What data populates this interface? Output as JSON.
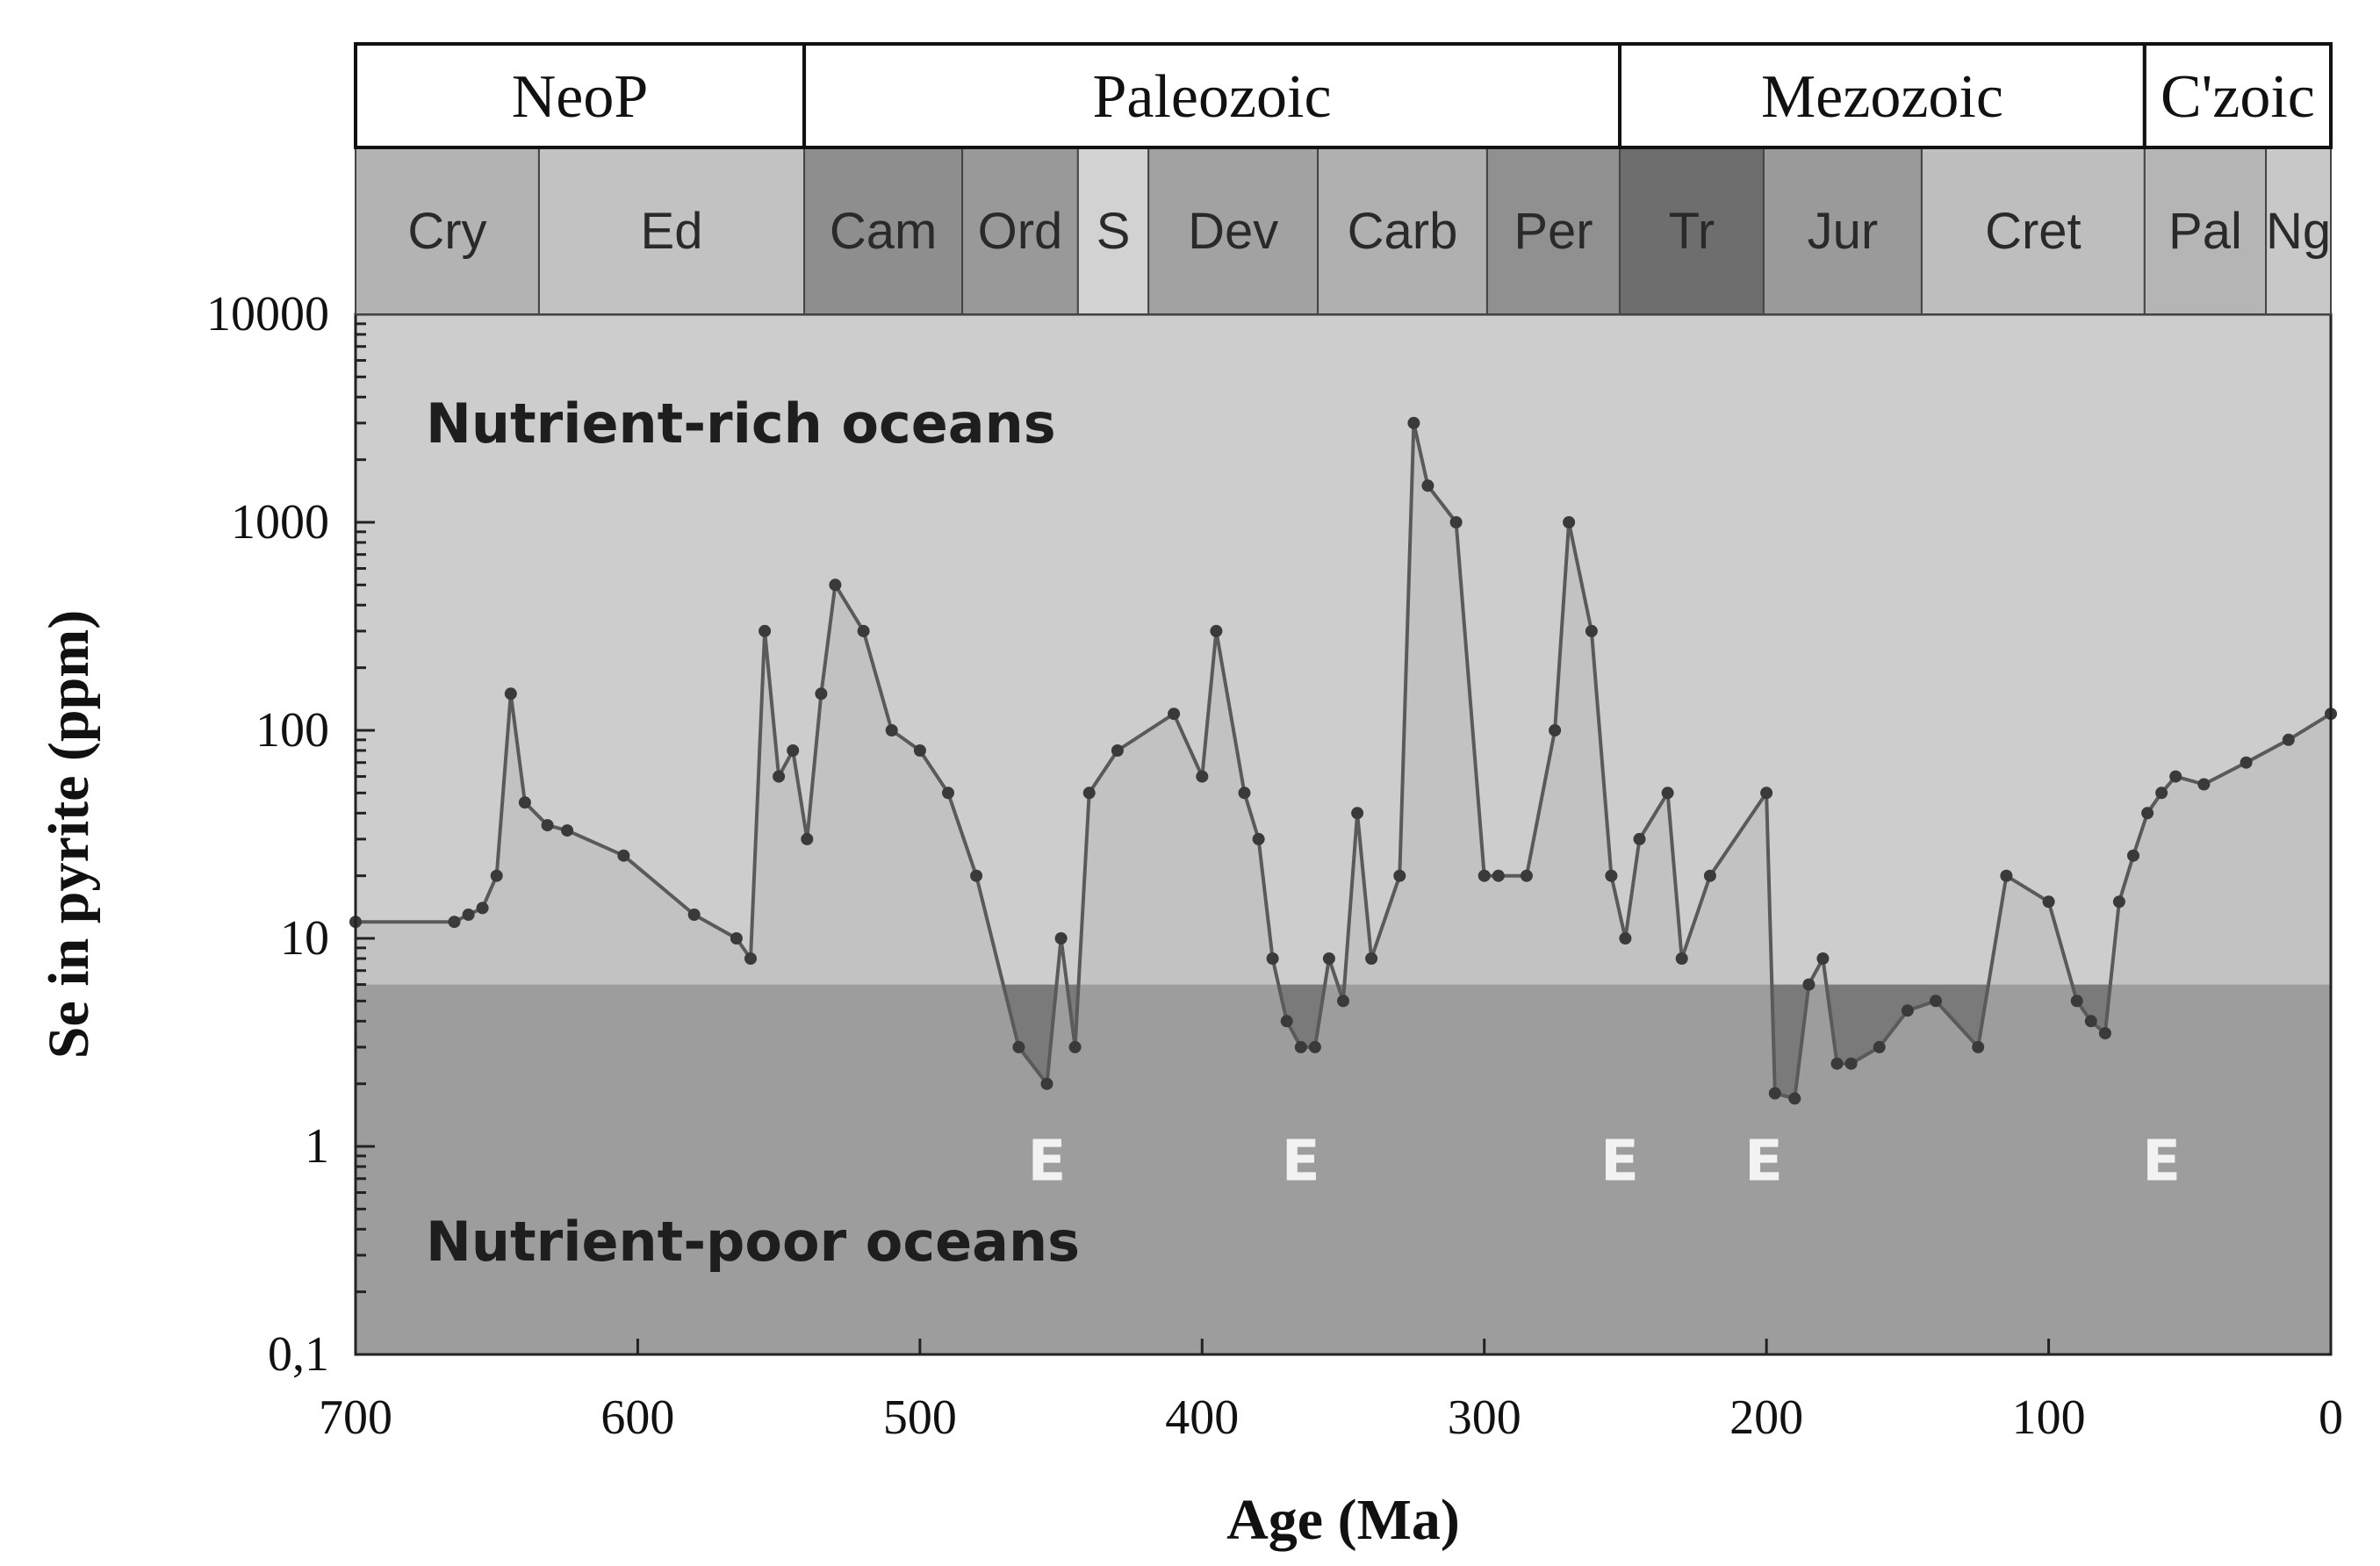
{
  "chart_data": {
    "type": "area",
    "title": "",
    "xlabel": "Age (Ma)",
    "ylabel": "Se  in pyrite (ppm)",
    "x_reversed": true,
    "xlim": [
      700,
      0
    ],
    "ylim": [
      0.1,
      10000
    ],
    "y_scale": "log",
    "x_ticks": [
      {
        "value": 700,
        "label": "700"
      },
      {
        "value": 600,
        "label": "600"
      },
      {
        "value": 500,
        "label": "500"
      },
      {
        "value": 400,
        "label": "400"
      },
      {
        "value": 300,
        "label": "300"
      },
      {
        "value": 200,
        "label": "200"
      },
      {
        "value": 100,
        "label": "100"
      },
      {
        "value": 0,
        "label": "0"
      }
    ],
    "y_ticks": [
      {
        "value": 10000,
        "label": "10000"
      },
      {
        "value": 1000,
        "label": "1000"
      },
      {
        "value": 100,
        "label": "100"
      },
      {
        "value": 10,
        "label": "10"
      },
      {
        "value": 1,
        "label": "1"
      },
      {
        "value": 0.1,
        "label": "0,1"
      }
    ],
    "zones": [
      {
        "label": "Nutrient-rich oceans",
        "from": 6,
        "to": 10000,
        "color": "#cdcdcd"
      },
      {
        "label": "Nutrient-poor oceans",
        "from": 0.1,
        "to": 6,
        "color": "#7a7a7a"
      }
    ],
    "eras": [
      {
        "label": "NeoP",
        "start": 700,
        "end": 541
      },
      {
        "label": "Paleozoic",
        "start": 541,
        "end": 252
      },
      {
        "label": "Mezozoic",
        "start": 252,
        "end": 66
      },
      {
        "label": "C'zoic",
        "start": 66,
        "end": 0
      }
    ],
    "periods": [
      {
        "label": "Cry",
        "start": 700,
        "end": 635,
        "color": "#b3b3b3"
      },
      {
        "label": "Ed",
        "start": 635,
        "end": 541,
        "color": "#c2c2c2"
      },
      {
        "label": "Cam",
        "start": 541,
        "end": 485,
        "color": "#8e8e8e"
      },
      {
        "label": "Ord",
        "start": 485,
        "end": 444,
        "color": "#999999"
      },
      {
        "label": "S",
        "start": 444,
        "end": 419,
        "color": "#d2d2d2"
      },
      {
        "label": "Dev",
        "start": 419,
        "end": 359,
        "color": "#a2a2a2"
      },
      {
        "label": "Carb",
        "start": 359,
        "end": 299,
        "color": "#b0b0b0"
      },
      {
        "label": "Per",
        "start": 299,
        "end": 252,
        "color": "#909090"
      },
      {
        "label": "Tr",
        "start": 252,
        "end": 201,
        "color": "#6e6e6e"
      },
      {
        "label": "Jur",
        "start": 201,
        "end": 145,
        "color": "#9a9a9a"
      },
      {
        "label": "Cret",
        "start": 145,
        "end": 66,
        "color": "#bebebe"
      },
      {
        "label": "Pal",
        "start": 66,
        "end": 23,
        "color": "#b5b5b5"
      },
      {
        "label": "Ng",
        "start": 23,
        "end": 0,
        "color": "#c8c8c8"
      }
    ],
    "series": [
      {
        "type": "area",
        "color": "#5a5a5a",
        "fill": "#b9b9b9",
        "x": [
          700,
          665,
          660,
          655,
          650,
          645,
          640,
          632,
          625,
          605,
          580,
          565,
          560,
          555,
          550,
          545,
          540,
          535,
          530,
          520,
          510,
          500,
          490,
          480,
          465,
          455,
          450,
          445,
          440,
          430,
          410,
          400,
          395,
          385,
          380,
          375,
          370,
          365,
          360,
          355,
          350,
          345,
          340,
          330,
          325,
          320,
          310,
          300,
          295,
          285,
          275,
          270,
          262,
          255,
          250,
          245,
          235,
          230,
          220,
          200,
          197,
          190,
          185,
          180,
          175,
          170,
          160,
          150,
          140,
          125,
          115,
          100,
          90,
          85,
          80,
          75,
          70,
          65,
          60,
          55,
          45,
          30,
          15,
          0
        ],
        "y": [
          12,
          12,
          13,
          14,
          20,
          150,
          45,
          35,
          33,
          25,
          13,
          10,
          8,
          300,
          60,
          80,
          30,
          150,
          500,
          300,
          100,
          80,
          50,
          20,
          3,
          2,
          10,
          3,
          50,
          80,
          120,
          60,
          300,
          50,
          30,
          8,
          4,
          3,
          3,
          8,
          5,
          40,
          8,
          20,
          3000,
          1500,
          1000,
          20,
          20,
          20,
          100,
          1000,
          300,
          20,
          10,
          30,
          50,
          8,
          20,
          50,
          1.8,
          1.7,
          6,
          8,
          2.5,
          2.5,
          3,
          4.5,
          5,
          3,
          20,
          15,
          5,
          4,
          3.5,
          15,
          25,
          40,
          50,
          60,
          55,
          70,
          90,
          120
        ]
      }
    ],
    "annotations": [
      {
        "text": "Nutrient-rich oceans",
        "x": 600,
        "y": 3000
      },
      {
        "text": "Nutrient-poor oceans",
        "x": 600,
        "y": 0.35
      },
      {
        "text": "E",
        "x": 455,
        "y": 0.85
      },
      {
        "text": "E",
        "x": 365,
        "y": 0.85
      },
      {
        "text": "E",
        "x": 252,
        "y": 0.85
      },
      {
        "text": "E",
        "x": 201,
        "y": 0.85
      },
      {
        "text": "E",
        "x": 60,
        "y": 0.85
      }
    ]
  }
}
